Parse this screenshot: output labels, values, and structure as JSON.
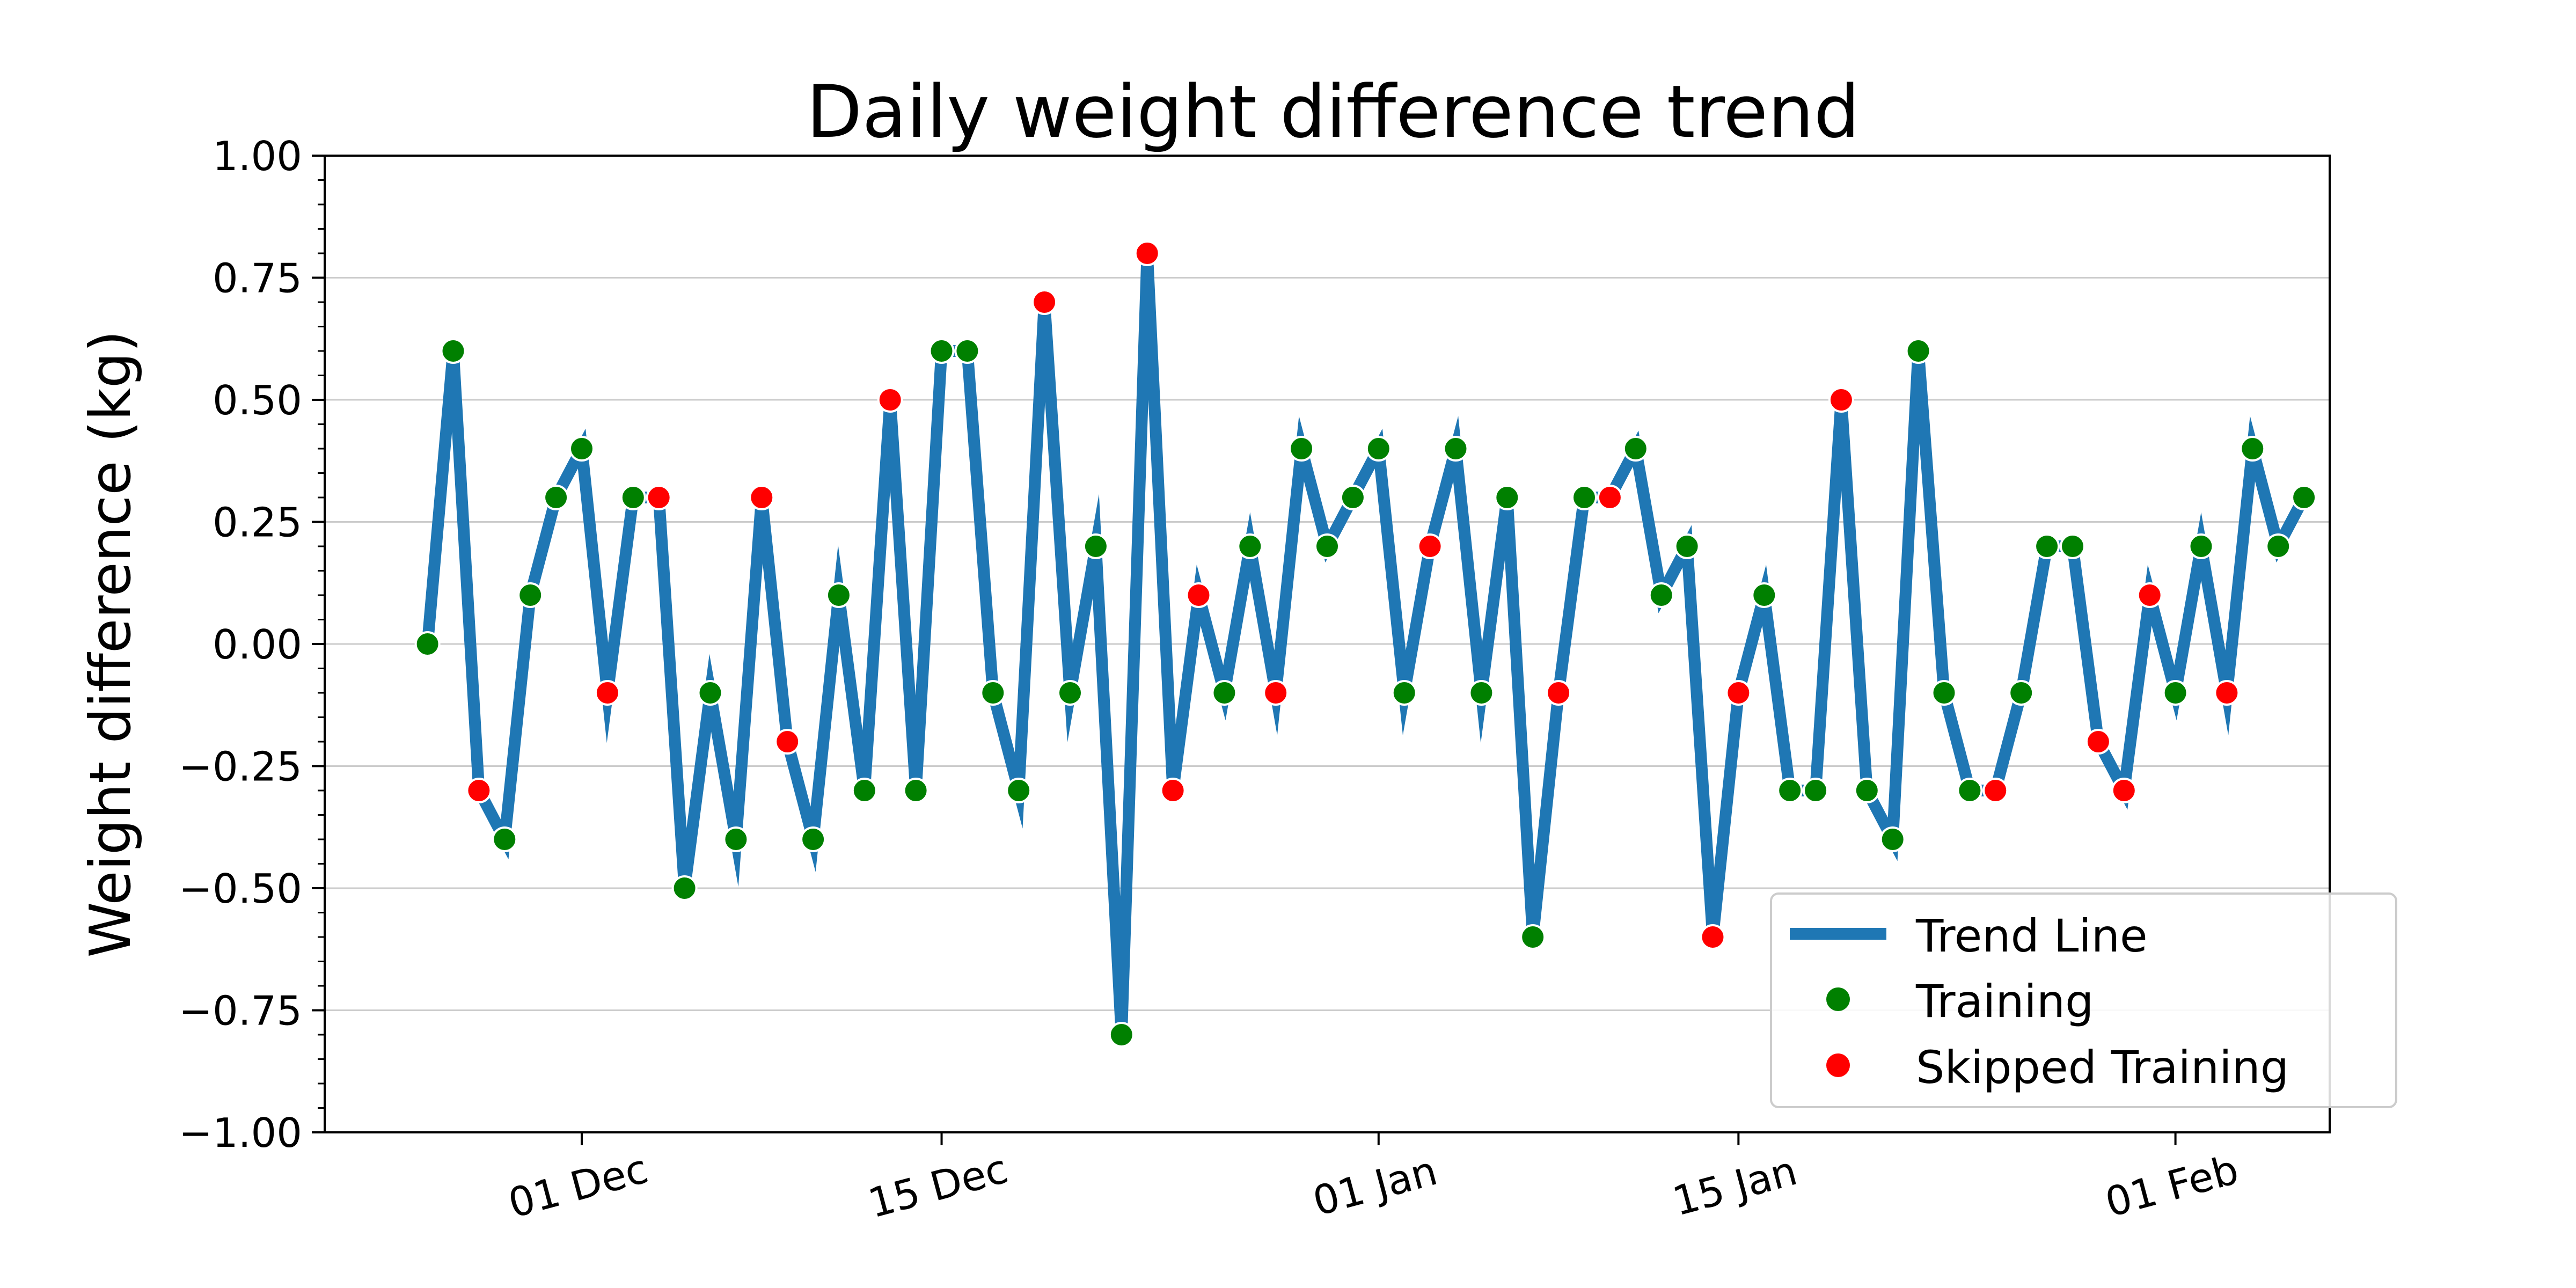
{
  "chart_data": {
    "type": "line",
    "title": "Daily weight difference trend",
    "xlabel": "",
    "ylabel": "Weight difference (kg)",
    "xlim": [
      "2023-11-21",
      "2024-02-07"
    ],
    "ylim": [
      -1.0,
      1.0
    ],
    "x_ticks": [
      {
        "date": "2023-12-01",
        "label": "01 Dec"
      },
      {
        "date": "2023-12-15",
        "label": "15 Dec"
      },
      {
        "date": "2024-01-01",
        "label": "01 Jan"
      },
      {
        "date": "2024-01-15",
        "label": "15 Jan"
      },
      {
        "date": "2024-02-01",
        "label": "01 Feb"
      }
    ],
    "y_ticks": [
      1.0,
      0.75,
      0.5,
      0.25,
      0.0,
      -0.25,
      -0.5,
      -0.75,
      -1.0
    ],
    "y_tick_labels": [
      "1.00",
      "0.75",
      "0.50",
      "0.25",
      "0.00",
      "−0.25",
      "−0.50",
      "−0.75",
      "−1.00"
    ],
    "y_grid": true,
    "legend_position": "lower-right",
    "legend": [
      {
        "label": "Trend Line",
        "kind": "line",
        "color": "#1f77b4"
      },
      {
        "label": "Training",
        "kind": "marker",
        "color": "#008000"
      },
      {
        "label": "Skipped Training",
        "kind": "marker",
        "color": "#ff0000"
      }
    ],
    "start_date": "2023-11-25",
    "values": [
      0.0,
      0.6,
      -0.3,
      -0.4,
      0.1,
      0.3,
      0.4,
      -0.1,
      0.3,
      0.3,
      -0.5,
      -0.1,
      -0.4,
      0.3,
      -0.2,
      -0.4,
      0.1,
      -0.3,
      0.5,
      -0.3,
      0.6,
      0.6,
      -0.1,
      -0.3,
      0.7,
      -0.1,
      0.2,
      -0.8,
      0.8,
      -0.3,
      0.1,
      -0.1,
      0.2,
      -0.1,
      0.4,
      0.2,
      0.3,
      0.4,
      -0.1,
      0.2,
      0.4,
      -0.1,
      0.3,
      -0.6,
      -0.1,
      0.3,
      0.3,
      0.4,
      0.1,
      0.2,
      -0.6,
      -0.1,
      0.1,
      -0.3,
      -0.3,
      0.5,
      -0.3,
      -0.4,
      0.6,
      -0.1,
      -0.3,
      -0.3,
      -0.1,
      0.2,
      0.2,
      -0.2,
      -0.3,
      0.1,
      -0.1,
      0.2,
      -0.1,
      0.4,
      0.2,
      0.3
    ],
    "training": [
      "T",
      "T",
      "S",
      "T",
      "T",
      "T",
      "T",
      "S",
      "T",
      "S",
      "T",
      "T",
      "T",
      "S",
      "S",
      "T",
      "T",
      "T",
      "S",
      "T",
      "T",
      "T",
      "T",
      "T",
      "S",
      "T",
      "T",
      "T",
      "S",
      "S",
      "S",
      "T",
      "T",
      "S",
      "T",
      "T",
      "T",
      "T",
      "T",
      "S",
      "T",
      "T",
      "T",
      "T",
      "S",
      "T",
      "S",
      "T",
      "T",
      "T",
      "S",
      "S",
      "T",
      "T",
      "T",
      "S",
      "T",
      "T",
      "T",
      "T",
      "T",
      "S",
      "T",
      "T",
      "T",
      "S",
      "S",
      "S",
      "T",
      "T",
      "S",
      "T",
      "T",
      "T"
    ],
    "colors": {
      "line": "#1f77b4",
      "training": "#008000",
      "skipped": "#ff0000",
      "grid": "#cccccc"
    }
  }
}
